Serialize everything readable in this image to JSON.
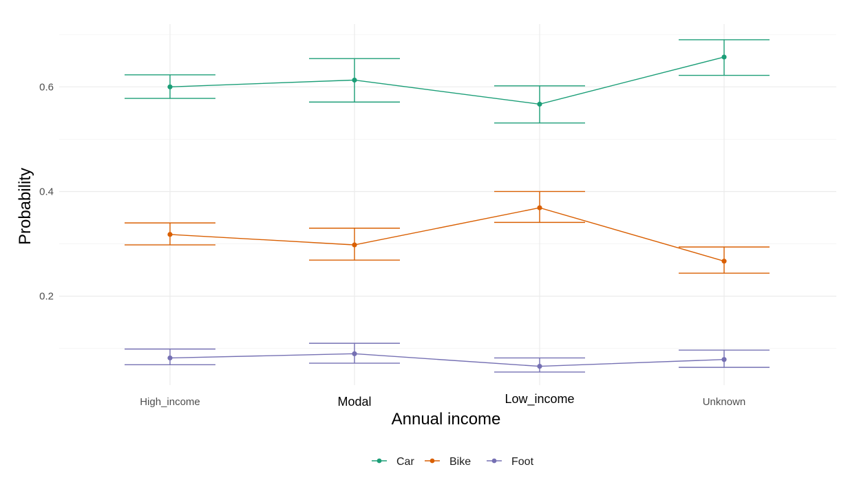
{
  "chart_data": {
    "type": "line",
    "title": "",
    "xlabel": "Annual income",
    "ylabel": "Probability",
    "categories": [
      "High_income",
      "Modal",
      "Low_income",
      "Unknown"
    ],
    "ylim": [
      0.03,
      0.72
    ],
    "yticks": [
      0.2,
      0.4,
      0.6
    ],
    "ytick_labels": [
      "0.2",
      "0.4",
      "0.6"
    ],
    "grid": true,
    "legend_position": "bottom",
    "series": [
      {
        "name": "Car",
        "color": "#1b9e77",
        "values": [
          0.6,
          0.613,
          0.567,
          0.657
        ],
        "lower": [
          0.578,
          0.571,
          0.531,
          0.622
        ],
        "upper": [
          0.623,
          0.654,
          0.602,
          0.69
        ]
      },
      {
        "name": "Bike",
        "color": "#d95f02",
        "values": [
          0.318,
          0.298,
          0.369,
          0.267
        ],
        "lower": [
          0.298,
          0.269,
          0.341,
          0.244
        ],
        "upper": [
          0.34,
          0.33,
          0.4,
          0.294
        ]
      },
      {
        "name": "Foot",
        "color": "#7570b3",
        "values": [
          0.082,
          0.09,
          0.066,
          0.079
        ],
        "lower": [
          0.069,
          0.072,
          0.055,
          0.064
        ],
        "upper": [
          0.099,
          0.11,
          0.082,
          0.097
        ]
      }
    ]
  }
}
